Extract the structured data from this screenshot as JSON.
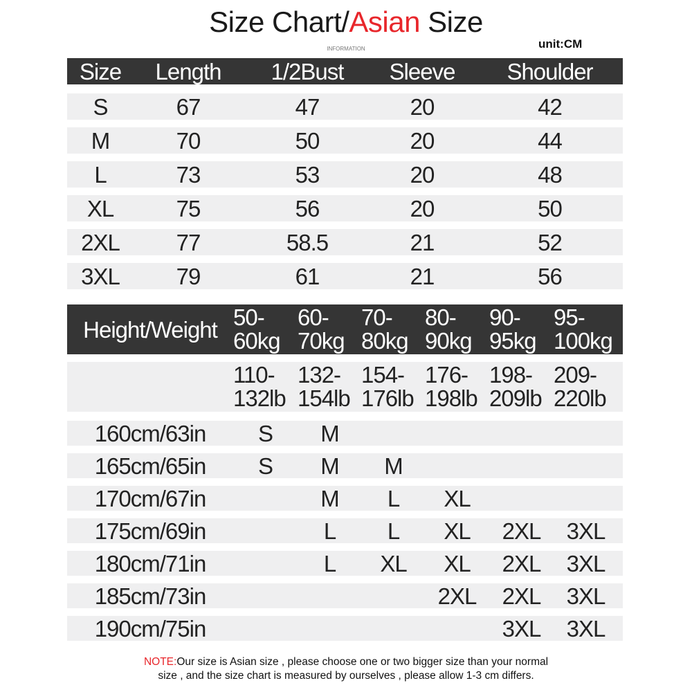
{
  "title": {
    "part1": "Size Chart/",
    "accent": "Asian",
    "part2": " Size"
  },
  "subtitle": "INFORMATION",
  "unit": "unit:CM",
  "accent_color": "#e8262b",
  "size_table": {
    "headers": [
      "Size",
      "Length",
      "1/2Bust",
      "Sleeve",
      "Shoulder"
    ],
    "rows": [
      [
        "S",
        "67",
        "47",
        "20",
        "42"
      ],
      [
        "M",
        "70",
        "50",
        "20",
        "44"
      ],
      [
        "L",
        "73",
        "53",
        "20",
        "48"
      ],
      [
        "XL",
        "75",
        "56",
        "20",
        "50"
      ],
      [
        "2XL",
        "77",
        "58.5",
        "21",
        "52"
      ],
      [
        "3XL",
        "79",
        "61",
        "21",
        "56"
      ]
    ]
  },
  "fit_table": {
    "corner": "Height/Weight",
    "kg": [
      [
        "50-",
        "60kg"
      ],
      [
        "60-",
        "70kg"
      ],
      [
        "70-",
        "80kg"
      ],
      [
        "80-",
        "90kg"
      ],
      [
        "90-",
        "95kg"
      ],
      [
        "95-",
        "100kg"
      ]
    ],
    "lb": [
      [
        "110-",
        "132lb"
      ],
      [
        "132-",
        "154lb"
      ],
      [
        "154-",
        "176lb"
      ],
      [
        "176-",
        "198lb"
      ],
      [
        "198-",
        "209lb"
      ],
      [
        "209-",
        "220lb"
      ]
    ],
    "rows": [
      {
        "height": "160cm/63in",
        "sizes": [
          "S",
          "M",
          "",
          "",
          "",
          ""
        ]
      },
      {
        "height": "165cm/65in",
        "sizes": [
          "S",
          "M",
          "M",
          "",
          "",
          ""
        ]
      },
      {
        "height": "170cm/67in",
        "sizes": [
          "",
          "M",
          "L",
          "XL",
          "",
          ""
        ]
      },
      {
        "height": "175cm/69in",
        "sizes": [
          "",
          "L",
          "L",
          "XL",
          "2XL",
          "3XL"
        ]
      },
      {
        "height": "180cm/71in",
        "sizes": [
          "",
          "L",
          "XL",
          "XL",
          "2XL",
          "3XL"
        ]
      },
      {
        "height": "185cm/73in",
        "sizes": [
          "",
          "",
          "",
          "2XL",
          "2XL",
          "3XL"
        ]
      },
      {
        "height": "190cm/75in",
        "sizes": [
          "",
          "",
          "",
          "",
          "3XL",
          "3XL"
        ]
      }
    ]
  },
  "note": {
    "label": "NOTE:",
    "line1": "Our size is Asian size , please choose one or two bigger size than your normal",
    "line2": "size , and the size chart is measured by ourselves , please allow 1-3 cm differs."
  }
}
